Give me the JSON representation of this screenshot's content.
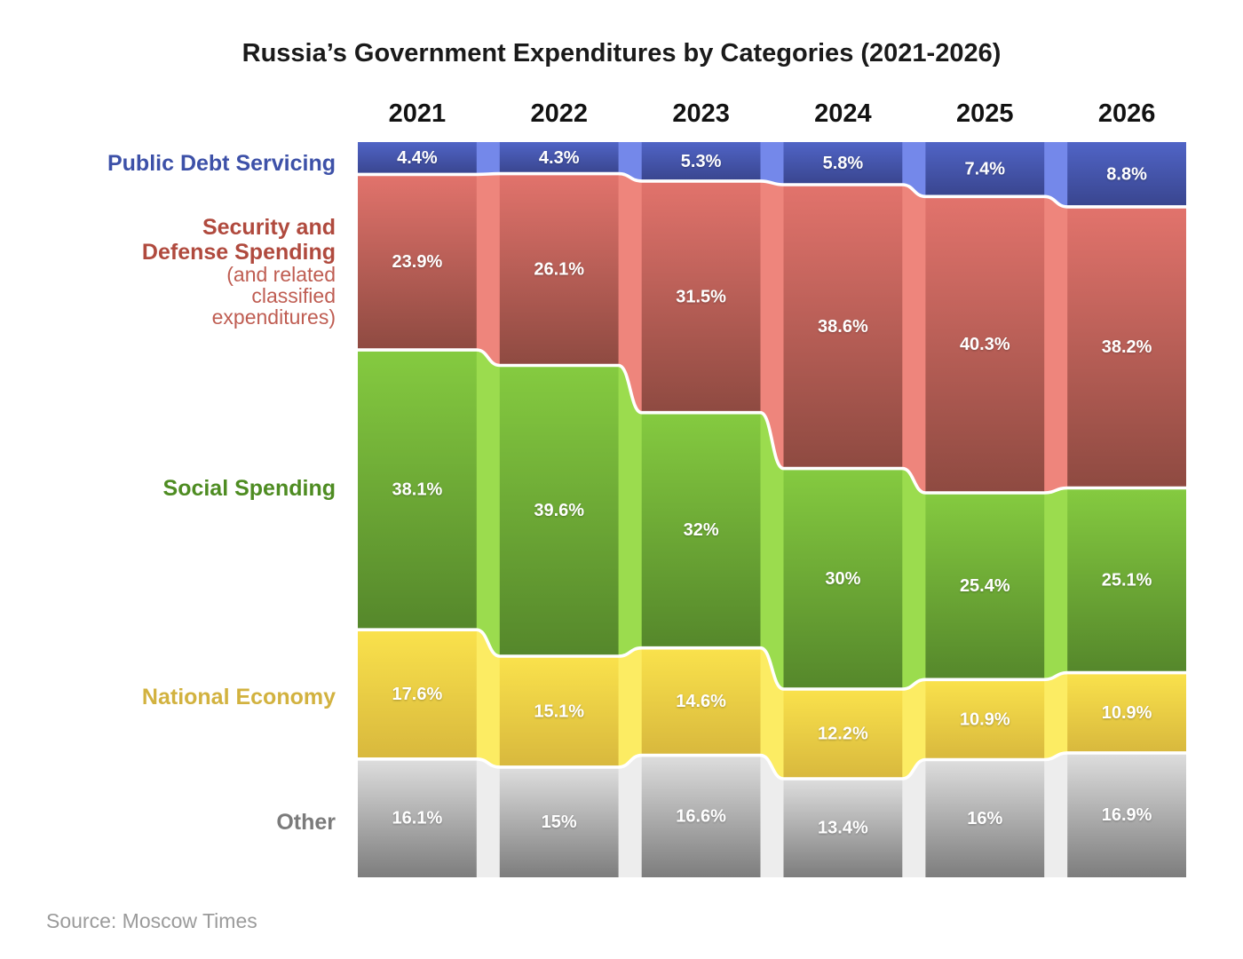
{
  "title": "Russia’s Government Expenditures by Categories (2021-2026)",
  "source": "Source: Moscow Times",
  "chart_data": {
    "type": "bar",
    "variant": "100%-stacked-columns-with-flow-connectors",
    "categories": [
      "2021",
      "2022",
      "2023",
      "2024",
      "2025",
      "2026"
    ],
    "unit": "%",
    "legend_position": "left",
    "series": [
      {
        "name": "Public Debt Servicing",
        "label_lines": [
          "Public Debt Servicing"
        ],
        "sublabel_lines": [],
        "values": [
          4.4,
          4.3,
          5.3,
          5.8,
          7.4,
          8.8
        ],
        "display_labels": [
          "4.4%",
          "4.3%",
          "5.3%",
          "5.8%",
          "7.4%",
          "8.8%"
        ],
        "color_top": "#5064c6",
        "color_bottom": "#39458e",
        "connector_color": "#7488ea",
        "label_color": "#3d51a8",
        "sublabel_color": "#3d51a8"
      },
      {
        "name": "Security and Defense Spending (and related classified expenditures)",
        "label_lines": [
          "Security and",
          "Defense Spending"
        ],
        "sublabel_lines": [
          "(and related",
          "classified",
          "expenditures)"
        ],
        "values": [
          23.9,
          26.1,
          31.5,
          38.6,
          40.3,
          38.2
        ],
        "display_labels": [
          "23.9%",
          "26.1%",
          "31.5%",
          "38.6%",
          "40.3%",
          "38.2%"
        ],
        "color_top": "#e2736c",
        "color_bottom": "#8e4a41",
        "connector_color": "#ee857c",
        "label_color": "#b04a3e",
        "sublabel_color": "#bf5d52"
      },
      {
        "name": "Social Spending",
        "label_lines": [
          "Social Spending"
        ],
        "sublabel_lines": [],
        "values": [
          38.1,
          39.6,
          32,
          30,
          25.4,
          25.1
        ],
        "display_labels": [
          "38.1%",
          "39.6%",
          "32%",
          "30%",
          "25.4%",
          "25.1%"
        ],
        "color_top": "#85cb40",
        "color_bottom": "#55872b",
        "connector_color": "#9bdc4e",
        "label_color": "#4e8c22",
        "sublabel_color": "#4e8c22"
      },
      {
        "name": "National Economy",
        "label_lines": [
          "National Economy"
        ],
        "sublabel_lines": [],
        "values": [
          17.6,
          15.1,
          14.6,
          12.2,
          10.9,
          10.9
        ],
        "display_labels": [
          "17.6%",
          "15.1%",
          "14.6%",
          "12.2%",
          "10.9%",
          "10.9%"
        ],
        "color_top": "#fae24c",
        "color_bottom": "#d8b83d",
        "connector_color": "#fcec63",
        "label_color": "#d2b23f",
        "sublabel_color": "#d2b23f"
      },
      {
        "name": "Other",
        "label_lines": [
          "Other"
        ],
        "sublabel_lines": [],
        "values": [
          16.1,
          15,
          16.6,
          13.4,
          16,
          16.9
        ],
        "display_labels": [
          "16.1%",
          "15%",
          "16.6%",
          "13.4%",
          "16%",
          "16.9%"
        ],
        "color_top": "#dedede",
        "color_bottom": "#7d7d7d",
        "connector_color": "#ededed",
        "label_color": "#7b7b7b",
        "sublabel_color": "#7b7b7b"
      }
    ]
  }
}
